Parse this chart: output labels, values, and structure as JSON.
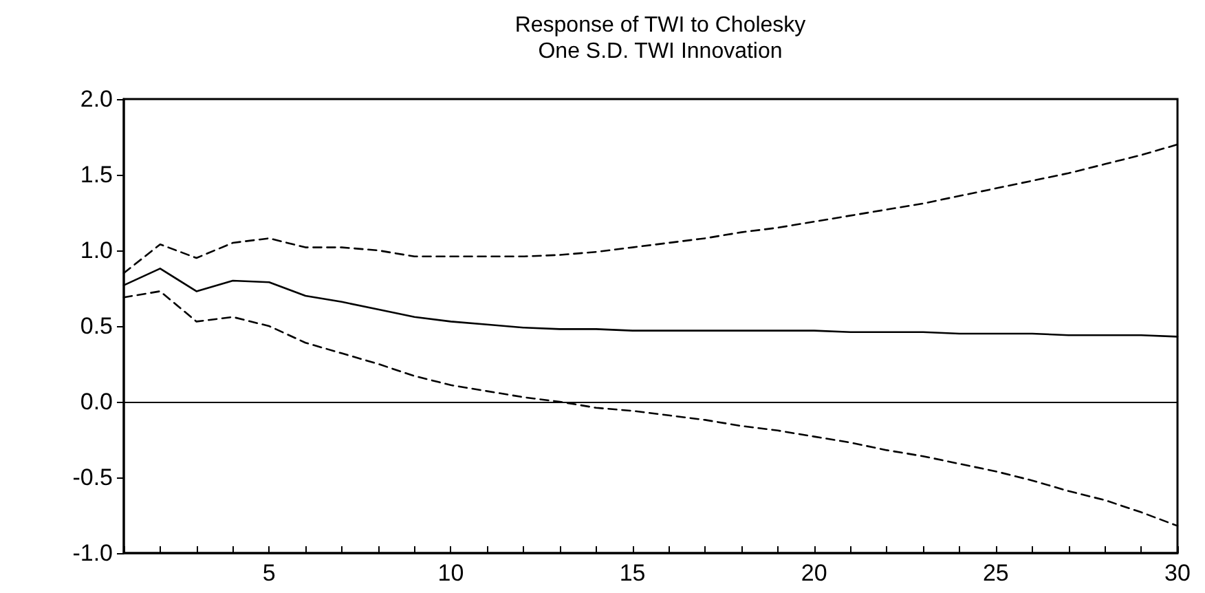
{
  "chart_data": {
    "type": "line",
    "title": "Response of TWI to Cholesky\nOne S.D. TWI Innovation",
    "x": [
      1,
      2,
      3,
      4,
      5,
      6,
      7,
      8,
      9,
      10,
      11,
      12,
      13,
      14,
      15,
      16,
      17,
      18,
      19,
      20,
      21,
      22,
      23,
      24,
      25,
      26,
      27,
      28,
      29,
      30
    ],
    "series": [
      {
        "color": "#000000",
        "line_style": "solid",
        "values": [
          0.77,
          0.88,
          0.73,
          0.8,
          0.79,
          0.7,
          0.66,
          0.61,
          0.56,
          0.53,
          0.51,
          0.49,
          0.48,
          0.48,
          0.47,
          0.47,
          0.47,
          0.47,
          0.47,
          0.47,
          0.46,
          0.46,
          0.46,
          0.45,
          0.45,
          0.45,
          0.44,
          0.44,
          0.44,
          0.43
        ]
      },
      {
        "color": "#000000",
        "line_style": "dashed",
        "values": [
          0.85,
          1.04,
          0.95,
          1.05,
          1.08,
          1.02,
          1.02,
          1.0,
          0.96,
          0.96,
          0.96,
          0.96,
          0.97,
          0.99,
          1.02,
          1.05,
          1.08,
          1.12,
          1.15,
          1.19,
          1.23,
          1.27,
          1.31,
          1.36,
          1.41,
          1.46,
          1.51,
          1.57,
          1.63,
          1.7
        ]
      },
      {
        "color": "#000000",
        "line_style": "dashed",
        "values": [
          0.69,
          0.73,
          0.53,
          0.56,
          0.5,
          0.39,
          0.32,
          0.25,
          0.17,
          0.11,
          0.07,
          0.03,
          0.0,
          -0.04,
          -0.06,
          -0.09,
          -0.12,
          -0.16,
          -0.19,
          -0.23,
          -0.27,
          -0.32,
          -0.36,
          -0.41,
          -0.46,
          -0.52,
          -0.59,
          -0.65,
          -0.73,
          -0.82
        ]
      }
    ],
    "xlim": [
      1,
      30
    ],
    "xticks": [
      {
        "value": 1,
        "label": null
      },
      {
        "value": 2,
        "label": null
      },
      {
        "value": 3,
        "label": null
      },
      {
        "value": 4,
        "label": null
      },
      5,
      {
        "value": 6,
        "label": null
      },
      {
        "value": 7,
        "label": null
      },
      {
        "value": 8,
        "label": null
      },
      {
        "value": 9,
        "label": null
      },
      10,
      {
        "value": 11,
        "label": null
      },
      {
        "value": 12,
        "label": null
      },
      {
        "value": 13,
        "label": null
      },
      {
        "value": 14,
        "label": null
      },
      15,
      {
        "value": 16,
        "label": null
      },
      {
        "value": 17,
        "label": null
      },
      {
        "value": 18,
        "label": null
      },
      {
        "value": 19,
        "label": null
      },
      20,
      {
        "value": 21,
        "label": null
      },
      {
        "value": 22,
        "label": null
      },
      {
        "value": 23,
        "label": null
      },
      {
        "value": 24,
        "label": null
      },
      25,
      {
        "value": 26,
        "label": null
      },
      {
        "value": 27,
        "label": null
      },
      {
        "value": 28,
        "label": null
      },
      {
        "value": 29,
        "label": null
      },
      30
    ],
    "ylim": [
      -1,
      2
    ],
    "yticks": [
      {
        "value": -1,
        "label": "-1.0"
      },
      {
        "value": -0.5,
        "label": "-0.5"
      },
      {
        "value": 0,
        "label": "0.0"
      },
      {
        "value": 0.5,
        "label": "0.5"
      },
      {
        "value": 1,
        "label": "1.0"
      },
      {
        "value": 1.5,
        "label": "1.5"
      },
      {
        "value": 2,
        "label": "2.0"
      }
    ],
    "ref_lines": [
      {
        "axis": "y",
        "value": 0,
        "color": "#000000"
      }
    ],
    "grid": false,
    "marker": "none"
  }
}
